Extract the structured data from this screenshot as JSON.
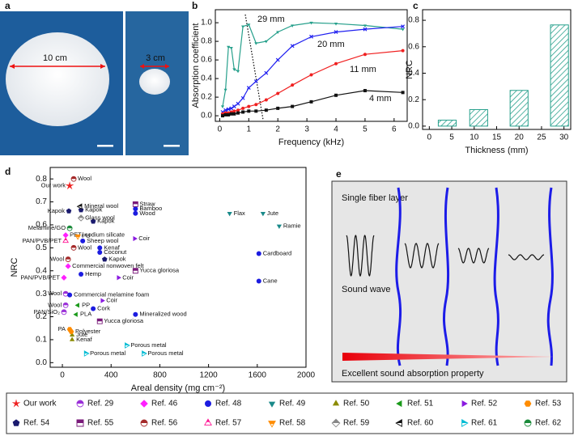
{
  "photo": {
    "panel": "a",
    "dims": [
      "10 cm",
      "3 cm"
    ]
  },
  "diagram": {
    "panel": "e",
    "title": "Single fiber layer",
    "wave_label": "Sound wave",
    "caption": "Excellent sound absorption property"
  },
  "chart_data": [
    {
      "type": "line",
      "panel": "b",
      "x_label": "Frequency (kHz)",
      "y_label": "Absorption coefficient",
      "x": [
        0.1,
        0.2,
        0.3,
        0.4,
        0.5,
        0.63,
        0.8,
        1.0,
        1.25,
        1.6,
        2.0,
        2.5,
        3.15,
        4.0,
        5.0,
        6.3
      ],
      "series": [
        {
          "name": "29 mm",
          "color": "#27a08c",
          "marker": "triangle-down",
          "values": [
            0.1,
            0.28,
            0.74,
            0.73,
            0.5,
            0.48,
            0.96,
            0.98,
            0.78,
            0.8,
            0.9,
            0.97,
            1.0,
            0.99,
            0.97,
            0.93
          ]
        },
        {
          "name": "20 mm",
          "color": "#2020f0",
          "marker": "x",
          "values": [
            0.04,
            0.06,
            0.07,
            0.08,
            0.1,
            0.13,
            0.19,
            0.3,
            0.37,
            0.46,
            0.6,
            0.75,
            0.85,
            0.9,
            0.93,
            0.96
          ]
        },
        {
          "name": "11 mm",
          "color": "#f02020",
          "marker": "circle",
          "values": [
            0.02,
            0.03,
            0.03,
            0.04,
            0.05,
            0.06,
            0.08,
            0.1,
            0.12,
            0.17,
            0.24,
            0.33,
            0.44,
            0.56,
            0.66,
            0.7
          ]
        },
        {
          "name": "4 mm",
          "color": "#111111",
          "marker": "square",
          "values": [
            0.0,
            0.01,
            0.01,
            0.02,
            0.02,
            0.03,
            0.04,
            0.05,
            0.05,
            0.06,
            0.08,
            0.1,
            0.15,
            0.22,
            0.27,
            0.25
          ]
        }
      ],
      "xlim": [
        -0.15,
        6.45
      ],
      "ylim": [
        -0.06,
        1.14
      ],
      "xticks": [
        0,
        1,
        2,
        3,
        4,
        5,
        6
      ],
      "yticks": [
        {
          "value": 0,
          "label": "0.0"
        },
        0.2,
        0.4,
        0.6,
        0.8,
        {
          "value": 1,
          "label": "1.0"
        }
      ]
    },
    {
      "type": "bar",
      "panel": "c",
      "x_label": "Thickness (mm)",
      "y_label": "NRC",
      "color": "#27a08c",
      "x": [
        4,
        11,
        20,
        29
      ],
      "values": [
        0.045,
        0.125,
        0.27,
        0.765
      ],
      "xlim": [
        -1.5,
        31.5
      ],
      "ylim": [
        -0.025,
        0.88
      ],
      "xticks": [
        0,
        5,
        10,
        15,
        20,
        25,
        30
      ],
      "yticks": [
        {
          "value": 0,
          "label": "0.0"
        },
        0.2,
        0.4,
        0.6,
        0.8
      ]
    },
    {
      "type": "scatter",
      "panel": "d",
      "x_label": "Areal density (mg cm⁻²)",
      "y_label": "NRC",
      "xlim": [
        -100,
        2000
      ],
      "ylim": [
        -0.02,
        0.85
      ],
      "xticks": [
        0,
        400,
        800,
        1200,
        1600,
        2000
      ],
      "yticks": [
        {
          "value": 0,
          "label": "0.0"
        },
        0.1,
        0.2,
        0.3,
        0.4,
        0.5,
        0.6,
        0.7,
        0.8
      ],
      "series": [
        {
          "name": "Our work",
          "color": "#ee2020",
          "marker": "star",
          "half": false,
          "x": [
            60
          ],
          "values": [
            0.77
          ],
          "labels": [
            "Our work"
          ]
        },
        {
          "name": "Ref. 29",
          "color": "#9a30d8",
          "marker": "circle",
          "half": true,
          "x": [
            27,
            27,
            13
          ],
          "values": [
            0.3,
            0.25,
            0.22
          ],
          "labels": [
            "Wool",
            "Wool",
            "PAN/SiO₂"
          ]
        },
        {
          "name": "Ref. 46",
          "color": "#ff20ff",
          "marker": "diamond",
          "half": false,
          "x": [
            27,
            47,
            13
          ],
          "values": [
            0.555,
            0.42,
            0.37
          ],
          "labels": [
            "PET/ sodium silicate",
            "Commercial nonwoven felt",
            "PAN/PVB/PET"
          ]
        },
        {
          "name": "Ref. 48",
          "color": "#1c1ce0",
          "marker": "circle",
          "half": false,
          "x": [
            167,
            307,
            307,
            153,
            1613,
            1613,
            600,
            600,
            600,
            60,
            253
          ],
          "values": [
            0.53,
            0.5,
            0.48,
            0.385,
            0.475,
            0.355,
            0.21,
            0.67,
            0.65,
            0.295,
            0.235
          ],
          "labels": [
            "Sheep wool",
            "Kenaf",
            "Coconut",
            "Hemp",
            "Cardboard",
            "Cane",
            "Mineralized wood",
            "Bamboo",
            "Wood",
            "Commercial melamine foam",
            "Cork"
          ]
        },
        {
          "name": "Ref. 49",
          "color": "#1a8a8a",
          "marker": "triangle-down",
          "half": false,
          "x": [
            1373,
            1647,
            1780
          ],
          "values": [
            0.65,
            0.65,
            0.595
          ],
          "labels": [
            "Flax",
            "Jute",
            "Ramie"
          ]
        },
        {
          "name": "Ref. 50",
          "color": "#8b8b00",
          "marker": "triangle-up",
          "half": false,
          "x": [
            80,
            80
          ],
          "values": [
            0.12,
            0.1
          ],
          "labels": [
            "Jute",
            "Kenaf"
          ]
        },
        {
          "name": "Ref. 51",
          "color": "#1a9a1a",
          "marker": "triangle-left",
          "half": false,
          "x": [
            127,
            113
          ],
          "values": [
            0.25,
            0.21
          ],
          "labels": [
            "PP",
            "PLA"
          ]
        },
        {
          "name": "Ref. 52",
          "color": "#8a1ae0",
          "marker": "triangle-right",
          "half": false,
          "x": [
            593,
            460,
            327
          ],
          "values": [
            0.54,
            0.37,
            0.27
          ],
          "labels": [
            "Coir",
            "Coir",
            "Coir"
          ]
        },
        {
          "name": "Ref. 53",
          "color": "#ff8c00",
          "marker": "hexagon",
          "half": false,
          "x": [
            60,
            73
          ],
          "values": [
            0.145,
            0.135
          ],
          "labels": [
            "PA",
            "Polyester"
          ]
        },
        {
          "name": "Ref. 54",
          "color": "#1a1a6e",
          "marker": "pentagon",
          "half": false,
          "x": [
            53,
            153,
            253,
            347
          ],
          "values": [
            0.66,
            0.665,
            0.615,
            0.45
          ],
          "labels": [
            "Kapok",
            "Kapok",
            "Kapok",
            "Kapok"
          ]
        },
        {
          "name": "Ref. 55",
          "color": "#7a1a7a",
          "marker": "square",
          "half": true,
          "x": [
            600,
            600,
            307
          ],
          "values": [
            0.69,
            0.4,
            0.18
          ],
          "labels": [
            "Straw",
            "Yucca gloriosa",
            "Yucca gloriosa"
          ]
        },
        {
          "name": "Ref. 56",
          "color": "#a52a2a",
          "marker": "circle",
          "half": true,
          "x": [
            93,
            93,
            47
          ],
          "values": [
            0.8,
            0.5,
            0.45
          ],
          "labels": [
            "Wool",
            "Wool",
            "Wool"
          ]
        },
        {
          "name": "Ref. 57",
          "color": "#ff1493",
          "marker": "triangle-up",
          "half": true,
          "x": [
            27
          ],
          "values": [
            0.53
          ],
          "labels": [
            "PAN/PVB/PET"
          ]
        },
        {
          "name": "Ref. 58",
          "color": "#ff8c00",
          "marker": "triangle-down",
          "half": true,
          "x": [
            127
          ],
          "values": [
            0.55
          ],
          "labels": [
            "PU"
          ]
        },
        {
          "name": "Ref. 59",
          "color": "#888888",
          "marker": "diamond",
          "half": true,
          "x": [
            153
          ],
          "values": [
            0.63
          ],
          "labels": [
            "Glass wool"
          ]
        },
        {
          "name": "Ref. 60",
          "color": "#111111",
          "marker": "triangle-left",
          "half": true,
          "x": [
            147
          ],
          "values": [
            0.68
          ],
          "labels": [
            "Mineral wool"
          ]
        },
        {
          "name": "Ref. 61",
          "color": "#00bcd4",
          "marker": "triangle-right",
          "half": true,
          "x": [
            527,
            193,
            667
          ],
          "values": [
            0.075,
            0.04,
            0.04
          ],
          "labels": [
            "Porous metal",
            "Porous metal",
            "Porous metal"
          ]
        },
        {
          "name": "Ref. 62",
          "color": "#1a8a3a",
          "marker": "circle",
          "half": true,
          "x": [
            60
          ],
          "values": [
            0.585
          ],
          "labels": [
            "Melamine/GO"
          ]
        }
      ]
    }
  ]
}
